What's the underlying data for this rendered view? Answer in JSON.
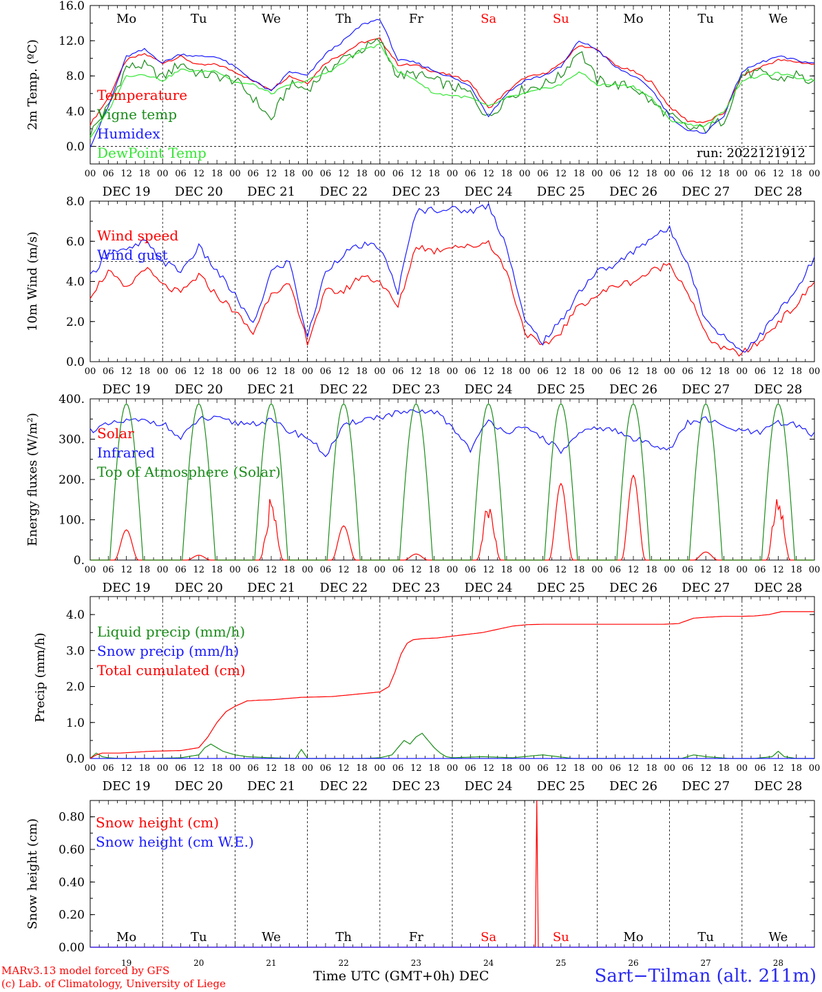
{
  "run_label": "run: 2022121912",
  "weekdays": [
    {
      "label": "Mo",
      "weekend": false
    },
    {
      "label": "Tu",
      "weekend": false
    },
    {
      "label": "We",
      "weekend": false
    },
    {
      "label": "Th",
      "weekend": false
    },
    {
      "label": "Fr",
      "weekend": false
    },
    {
      "label": "Sa",
      "weekend": true
    },
    {
      "label": "Su",
      "weekend": true
    },
    {
      "label": "Mo",
      "weekend": false
    },
    {
      "label": "Tu",
      "weekend": false
    },
    {
      "label": "We",
      "weekend": false
    }
  ],
  "dates": [
    "DEC 19",
    "DEC 20",
    "DEC 21",
    "DEC 22",
    "DEC 23",
    "DEC 24",
    "DEC 25",
    "DEC 26",
    "DEC 27",
    "DEC 28"
  ],
  "day_numbers": [
    "19",
    "20",
    "21",
    "22",
    "23",
    "24",
    "25",
    "26",
    "27",
    "28"
  ],
  "month_label": "DEC",
  "hour_ticks": [
    "00",
    "06",
    "12",
    "18"
  ],
  "x_title": "Time UTC (GMT+0h)",
  "credits": [
    "MARv3.13 model forced by GFS",
    "(c) Lab. of Climatology, University of Liege"
  ],
  "station": "Sart−Tilman (alt. 211m)",
  "colors": {
    "red": "#ff0000",
    "green": "#1a8c1a",
    "blue": "#1a1aff",
    "lightgreen": "#33e633",
    "weekend": "#ff0000"
  },
  "chart_data": [
    {
      "type": "line",
      "ylabel": "2m Temp. (ºC)",
      "ylim": [
        -2,
        16
      ],
      "yticks": [
        "0.0",
        "4.0",
        "8.0",
        "12.0",
        "16.0"
      ],
      "ytick_values": [
        0,
        4,
        8,
        12,
        16
      ],
      "ref_line": 0,
      "x_hours": [
        0,
        240
      ],
      "series": [
        {
          "name": "Temperature",
          "color": "#ff0000",
          "x": [
            0,
            6,
            12,
            18,
            24,
            30,
            36,
            42,
            48,
            54,
            60,
            66,
            72,
            78,
            84,
            90,
            96,
            102,
            108,
            114,
            120,
            126,
            132,
            138,
            144,
            150,
            156,
            162,
            168,
            174,
            180,
            186,
            192,
            198,
            204,
            210,
            216,
            222,
            228,
            234,
            240
          ],
          "y": [
            2.5,
            5.5,
            9.8,
            10.5,
            9.5,
            10.2,
            9.2,
            9.3,
            8.5,
            7.4,
            6.5,
            8.0,
            7.2,
            9.5,
            10.6,
            11.8,
            12.2,
            9.3,
            9.2,
            8.5,
            8.0,
            7.3,
            4.3,
            6.2,
            7.8,
            8.2,
            9.3,
            11.5,
            11.0,
            9.2,
            8.5,
            7.3,
            4.5,
            2.9,
            2.7,
            3.8,
            8.0,
            9.0,
            9.8,
            9.6,
            9.3
          ]
        },
        {
          "name": "Vigne temp",
          "color": "#1a8c1a",
          "x": [
            0,
            6,
            12,
            18,
            24,
            30,
            36,
            42,
            48,
            54,
            60,
            66,
            72,
            78,
            84,
            90,
            96,
            102,
            108,
            114,
            120,
            126,
            132,
            138,
            144,
            150,
            156,
            162,
            168,
            174,
            180,
            186,
            192,
            198,
            204,
            210,
            216,
            222,
            228,
            234,
            240
          ],
          "y": [
            1.5,
            4.5,
            9.0,
            9.2,
            7.8,
            9.5,
            8.2,
            8.0,
            7.5,
            5.5,
            3.0,
            7.0,
            6.5,
            8.5,
            10.0,
            11.0,
            12.0,
            8.0,
            8.2,
            7.5,
            6.8,
            6.0,
            3.2,
            5.6,
            6.5,
            7.0,
            8.0,
            11.0,
            7.5,
            7.0,
            6.8,
            5.0,
            3.5,
            2.0,
            2.0,
            3.0,
            8.2,
            8.3,
            7.5,
            8.2,
            7.0
          ]
        },
        {
          "name": "Humidex",
          "color": "#1a1aff",
          "x": [
            0,
            6,
            12,
            18,
            24,
            30,
            36,
            42,
            48,
            54,
            60,
            66,
            72,
            78,
            84,
            90,
            96,
            102,
            108,
            114,
            120,
            126,
            132,
            138,
            144,
            150,
            156,
            162,
            168,
            174,
            180,
            186,
            192,
            198,
            204,
            210,
            216,
            222,
            228,
            234,
            240
          ],
          "y": [
            0.0,
            4.5,
            10.2,
            11.0,
            9.5,
            10.5,
            10.2,
            10.2,
            9.0,
            7.5,
            6.2,
            8.5,
            8.0,
            10.5,
            12.0,
            13.8,
            14.5,
            9.8,
            9.5,
            8.6,
            7.8,
            6.8,
            3.5,
            6.0,
            7.5,
            8.0,
            9.0,
            12.0,
            11.0,
            9.0,
            8.0,
            6.5,
            3.5,
            1.7,
            1.6,
            3.5,
            8.5,
            9.5,
            10.2,
            9.8,
            9.4
          ]
        },
        {
          "name": "DewPoint Temp",
          "color": "#33e633",
          "x": [
            0,
            6,
            12,
            18,
            24,
            30,
            36,
            42,
            48,
            54,
            60,
            66,
            72,
            78,
            84,
            90,
            96,
            102,
            108,
            114,
            120,
            126,
            132,
            138,
            144,
            150,
            156,
            162,
            168,
            174,
            180,
            186,
            192,
            198,
            204,
            210,
            216,
            222,
            228,
            234,
            240
          ],
          "y": [
            1.0,
            4.0,
            8.0,
            8.2,
            7.5,
            8.7,
            8.5,
            8.6,
            7.3,
            7.0,
            6.0,
            7.0,
            7.5,
            8.3,
            9.5,
            11.0,
            11.5,
            8.5,
            7.5,
            6.0,
            5.8,
            5.5,
            4.5,
            5.5,
            6.0,
            6.5,
            7.0,
            8.5,
            7.0,
            7.0,
            6.8,
            5.5,
            3.0,
            2.5,
            2.3,
            4.0,
            7.5,
            8.0,
            8.3,
            7.8,
            7.5
          ]
        }
      ]
    },
    {
      "type": "line",
      "ylabel": "10m Wind (m/s)",
      "ylim": [
        0,
        8
      ],
      "yticks": [
        "0.0",
        "2.0",
        "4.0",
        "6.0",
        "8.0"
      ],
      "ytick_values": [
        0,
        2,
        4,
        6,
        8
      ],
      "ref_line": 5,
      "x_hours": [
        0,
        240
      ],
      "series": [
        {
          "name": "Wind speed",
          "color": "#ff0000",
          "x": [
            0,
            6,
            12,
            18,
            24,
            30,
            36,
            42,
            48,
            54,
            60,
            66,
            72,
            78,
            84,
            90,
            96,
            102,
            108,
            114,
            120,
            126,
            132,
            138,
            144,
            150,
            156,
            162,
            168,
            174,
            180,
            186,
            192,
            198,
            204,
            210,
            216,
            222,
            228,
            234,
            240
          ],
          "y": [
            3.3,
            4.5,
            3.6,
            4.7,
            3.8,
            3.4,
            4.3,
            3.3,
            2.5,
            1.4,
            3.5,
            3.8,
            1.0,
            3.5,
            3.5,
            4.3,
            4.0,
            2.7,
            5.8,
            5.5,
            5.8,
            5.7,
            6.0,
            4.5,
            1.5,
            0.7,
            1.5,
            2.8,
            3.3,
            3.8,
            4.0,
            4.5,
            4.9,
            3.5,
            1.3,
            0.6,
            0.4,
            1.0,
            2.0,
            2.8,
            4.0
          ]
        },
        {
          "name": "Wind gust",
          "color": "#1a1aff",
          "x": [
            0,
            6,
            12,
            18,
            24,
            30,
            36,
            42,
            48,
            54,
            60,
            66,
            72,
            78,
            84,
            90,
            96,
            102,
            108,
            114,
            120,
            126,
            132,
            138,
            144,
            150,
            156,
            162,
            168,
            174,
            180,
            186,
            192,
            198,
            204,
            210,
            216,
            222,
            228,
            234,
            240
          ],
          "y": [
            4.2,
            5.5,
            5.5,
            6.0,
            5.0,
            4.5,
            5.7,
            4.5,
            3.3,
            1.8,
            4.5,
            5.0,
            1.2,
            4.5,
            5.4,
            5.8,
            5.7,
            3.5,
            7.5,
            7.6,
            7.6,
            7.5,
            7.8,
            5.8,
            2.0,
            1.0,
            2.0,
            3.5,
            4.5,
            4.8,
            5.5,
            6.2,
            6.6,
            5.0,
            2.0,
            1.3,
            0.5,
            1.3,
            2.5,
            3.5,
            5.2
          ]
        }
      ]
    },
    {
      "type": "line",
      "ylabel": "Energy fluxes (W/m²)",
      "ylim": [
        0,
        400
      ],
      "yticks": [
        "0.",
        "100.",
        "200.",
        "300.",
        "400."
      ],
      "ytick_values": [
        0,
        100,
        200,
        300,
        400
      ],
      "x_hours": [
        0,
        240
      ],
      "series": [
        {
          "name": "Solar",
          "color": "#ff0000",
          "peaks": [
            75,
            12,
            160,
            85,
            15,
            160,
            190,
            210,
            20,
            170
          ]
        },
        {
          "name": "Infrared",
          "color": "#1a1aff",
          "x": [
            0,
            6,
            12,
            18,
            24,
            30,
            36,
            42,
            48,
            54,
            60,
            66,
            72,
            78,
            84,
            90,
            96,
            102,
            108,
            114,
            120,
            126,
            132,
            138,
            144,
            150,
            156,
            162,
            168,
            174,
            180,
            186,
            192,
            198,
            204,
            210,
            216,
            222,
            228,
            234,
            240
          ],
          "y": [
            322,
            335,
            345,
            345,
            340,
            300,
            350,
            350,
            340,
            340,
            345,
            320,
            305,
            260,
            330,
            350,
            355,
            365,
            365,
            370,
            330,
            275,
            345,
            320,
            325,
            305,
            270,
            310,
            330,
            320,
            300,
            290,
            275,
            340,
            350,
            330,
            320,
            315,
            340,
            335,
            310
          ]
        },
        {
          "name": "Top of Atmosphere (Solar)",
          "color": "#1a8c1a",
          "peak": 388
        }
      ]
    },
    {
      "type": "line",
      "ylabel": "Precip (mm/h)",
      "ylim": [
        0,
        4.5
      ],
      "yticks": [
        "0.0",
        "1.0",
        "2.0",
        "3.0",
        "4.0"
      ],
      "ytick_values": [
        0,
        1,
        2,
        3,
        4
      ],
      "x_hours": [
        0,
        240
      ],
      "series": [
        {
          "name": "Liquid precip (mm/h)",
          "color": "#1a8c1a",
          "x": [
            0,
            2,
            4,
            6,
            10,
            20,
            30,
            36,
            38,
            40,
            42,
            44,
            46,
            48,
            52,
            60,
            68,
            70,
            72,
            90,
            96,
            100,
            102,
            104,
            106,
            108,
            110,
            112,
            114,
            116,
            118,
            120,
            130,
            140,
            150,
            160,
            170,
            180,
            196,
            200,
            204,
            212,
            220,
            226,
            228,
            230,
            234,
            240
          ],
          "y": [
            0,
            0.15,
            0.05,
            0.02,
            0,
            0,
            0.02,
            0.1,
            0.3,
            0.4,
            0.3,
            0.2,
            0.15,
            0.1,
            0.05,
            0.02,
            0,
            0.25,
            0,
            0,
            0.02,
            0.1,
            0.3,
            0.5,
            0.4,
            0.6,
            0.7,
            0.5,
            0.3,
            0.15,
            0.05,
            0.02,
            0.05,
            0.02,
            0.1,
            0,
            0,
            0,
            0,
            0.1,
            0.05,
            0,
            0,
            0.05,
            0.2,
            0.05,
            0,
            0
          ]
        },
        {
          "name": "Snow precip (mm/h)",
          "color": "#1a1aff",
          "x": [
            0,
            240
          ],
          "y": [
            0,
            0
          ]
        },
        {
          "name": "Total cumulated (cm)",
          "color": "#ff0000",
          "x": [
            0,
            2,
            4,
            10,
            20,
            30,
            36,
            39,
            42,
            45,
            48,
            52,
            56,
            60,
            70,
            80,
            90,
            96,
            99,
            101,
            103,
            105,
            107,
            110,
            115,
            120,
            130,
            140,
            145,
            150,
            160,
            170,
            180,
            190,
            195,
            200,
            205,
            210,
            215,
            220,
            225,
            229,
            232,
            240
          ],
          "y": [
            0,
            0.1,
            0.15,
            0.15,
            0.2,
            0.22,
            0.3,
            0.6,
            1.0,
            1.3,
            1.45,
            1.6,
            1.62,
            1.63,
            1.7,
            1.72,
            1.8,
            1.85,
            2.0,
            2.4,
            2.9,
            3.2,
            3.3,
            3.33,
            3.35,
            3.4,
            3.5,
            3.68,
            3.72,
            3.73,
            3.73,
            3.73,
            3.73,
            3.73,
            3.75,
            3.9,
            3.93,
            3.95,
            3.95,
            3.96,
            4.0,
            4.08,
            4.08,
            4.08
          ]
        }
      ]
    },
    {
      "type": "line",
      "ylabel": "Snow height (cm)",
      "ylim": [
        0,
        0.9
      ],
      "yticks": [
        "0.00",
        "0.20",
        "0.40",
        "0.60",
        "0.80"
      ],
      "ytick_values": [
        0,
        0.2,
        0.4,
        0.6,
        0.8
      ],
      "x_hours": [
        0,
        240
      ],
      "series": [
        {
          "name": "Snow height (cm)",
          "color": "#ff0000",
          "x": [
            0,
            147.5,
            148,
            148.5,
            240
          ],
          "y": [
            0,
            0,
            0.9,
            0,
            0
          ]
        },
        {
          "name": "Snow height (cm W.E.)",
          "color": "#1a1aff",
          "x": [
            0,
            240
          ],
          "y": [
            0,
            0
          ]
        }
      ]
    }
  ]
}
